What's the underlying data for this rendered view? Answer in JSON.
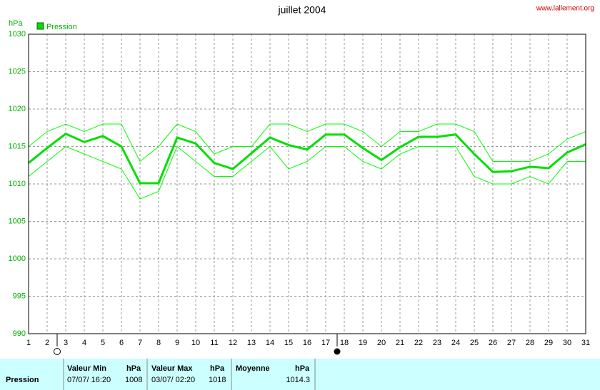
{
  "chart_data": {
    "type": "line",
    "title": "juillet 2004",
    "source": "www.lallement.org",
    "y_label": "hPa",
    "x": [
      1,
      2,
      3,
      4,
      5,
      6,
      7,
      8,
      9,
      10,
      11,
      12,
      13,
      14,
      15,
      16,
      17,
      18,
      19,
      20,
      21,
      22,
      23,
      24,
      25,
      26,
      27,
      28,
      29,
      30,
      31
    ],
    "xlim": [
      1,
      31
    ],
    "xticks": [
      1,
      2,
      3,
      4,
      5,
      6,
      7,
      8,
      9,
      10,
      11,
      12,
      13,
      14,
      15,
      16,
      17,
      18,
      19,
      20,
      21,
      22,
      23,
      24,
      25,
      26,
      27,
      28,
      29,
      30,
      31
    ],
    "ylim": [
      990,
      1030
    ],
    "yticks": [
      990,
      995,
      1000,
      1005,
      1010,
      1015,
      1020,
      1025,
      1030
    ],
    "grid": true,
    "series": [
      {
        "name": "Pression",
        "color": "#00e000",
        "values": [
          1012.8,
          1014.8,
          1016.7,
          1015.6,
          1016.4,
          1015.0,
          1010.1,
          1010.1,
          1016.2,
          1015.4,
          1012.8,
          1012.0,
          1014.1,
          1016.2,
          1015.2,
          1014.6,
          1016.6,
          1016.6,
          1014.8,
          1013.2,
          1014.9,
          1016.3,
          1016.3,
          1016.6,
          1014.0,
          1011.6,
          1011.7,
          1012.3,
          1012.1,
          1014.2,
          1015.3
        ]
      },
      {
        "color": "#00ff00",
        "values": [
          1015,
          1017,
          1018,
          1017,
          1018,
          1018,
          1013,
          1015,
          1018,
          1017,
          1014,
          1015,
          1015,
          1018,
          1018,
          1017,
          1018,
          1018,
          1017,
          1015,
          1017,
          1017,
          1018,
          1018,
          1017,
          1013,
          1013,
          1013,
          1014,
          1016,
          1017
        ]
      },
      {
        "color": "#00ff00",
        "values": [
          1011,
          1013,
          1015,
          1014,
          1013,
          1012,
          1008,
          1009,
          1015,
          1013,
          1011,
          1011,
          1013,
          1015,
          1012,
          1013,
          1015,
          1015,
          1013,
          1012,
          1014,
          1015,
          1015,
          1015,
          1011,
          1010,
          1010,
          1011,
          1010,
          1013,
          1013
        ]
      }
    ]
  },
  "stats": {
    "row_label": "Pression",
    "min": {
      "header": "Valeur Min",
      "unit": "hPa",
      "date": "07/07/  16:20",
      "value": "1008"
    },
    "max": {
      "header": "Valeur Max",
      "unit": "hPa",
      "date": "03/07/  02:20",
      "value": "1018"
    },
    "mean": {
      "header": "Moyenne",
      "unit": "hPa",
      "value": "1014.3"
    }
  }
}
